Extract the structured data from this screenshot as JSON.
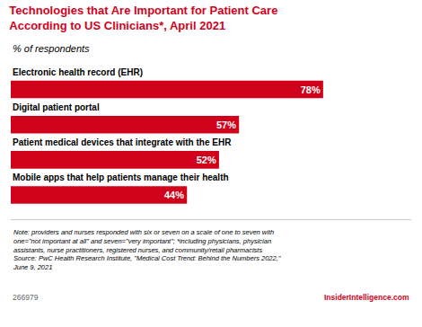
{
  "chart_data": {
    "type": "bar",
    "orientation": "horizontal",
    "title": "Technologies that Are Important for Patient Care\nAccording to US Clinicians*, April 2021",
    "subtitle": "% of respondents",
    "categories": [
      "Electronic health record (EHR)",
      "Digital patient portal",
      "Patient medical devices that integrate with the EHR",
      "Mobile apps that help patients manage their health"
    ],
    "values": [
      78,
      57,
      52,
      44
    ],
    "value_labels": [
      "78%",
      "57%",
      "52%",
      "44%"
    ],
    "data_labels": true,
    "color": "#d0021b",
    "xlim": [
      0,
      100
    ],
    "tick_labels": false,
    "grid": false,
    "annotations": [
      "Note: providers and nurses responded with six or seven on a scale of one to seven with\none=\"not important at all\" and seven=\"very important\"; *including physicians, physician\nassistants, nurse practitioners, registered nurses, and community/retail pharmacists\nSource: PwC Health Research Institute, \"Medical Cost Trend: Behind the Numbers 2022,\"\nJune 9, 2021",
      "266979",
      "InsiderIntelligence.com"
    ]
  }
}
